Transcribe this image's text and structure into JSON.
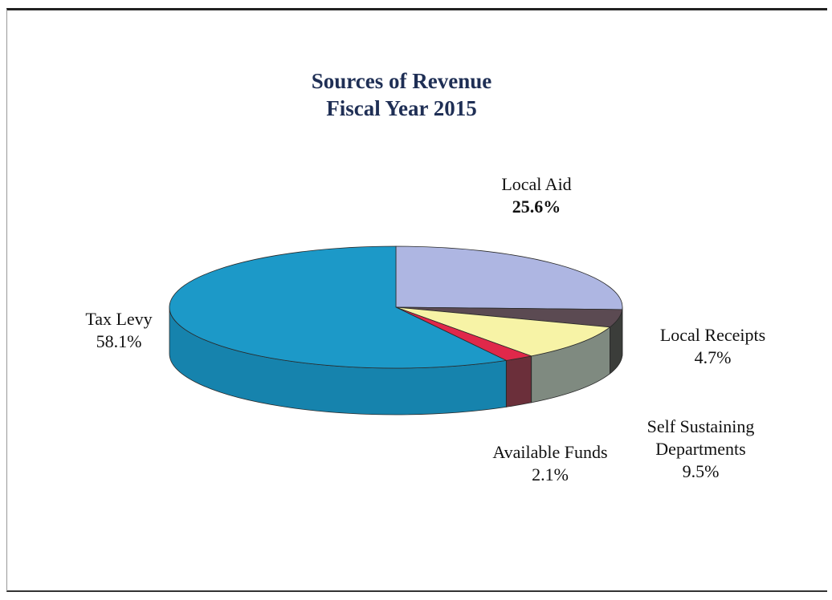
{
  "chart_data": {
    "type": "pie",
    "title": "Sources of Revenue",
    "subtitle": "Fiscal Year 2015",
    "slices": [
      {
        "label": "Local Aid",
        "value": 25.6,
        "display": "25.6%",
        "color": "#aeb6e2"
      },
      {
        "label": "Local Receipts",
        "value": 4.7,
        "display": "4.7%",
        "color": "#5b4a52"
      },
      {
        "label": "Self Sustaining Departments",
        "value": 9.5,
        "display": "9.5%",
        "color": "#f7f3a6"
      },
      {
        "label": "Available Funds",
        "value": 2.1,
        "display": "2.1%",
        "color": "#e0284a"
      },
      {
        "label": "Tax Levy",
        "value": 58.1,
        "display": "58.1%",
        "color": "#1c99c8"
      }
    ],
    "side_colors": {
      "Local Aid": "#5a4d55",
      "Local Receipts": "#3b3d3a",
      "Self Sustaining Departments": "#7f8a80",
      "Available Funds": "#6b2f3a",
      "Tax Levy": "#1683ad"
    }
  },
  "labels": {
    "local_aid_name": "Local Aid",
    "local_aid_value": "25.6%",
    "local_receipts_name": "Local Receipts",
    "local_receipts_value": "4.7%",
    "ssd_name_line1": "Self Sustaining",
    "ssd_name_line2": "Departments",
    "ssd_value": "9.5%",
    "available_name": "Available Funds",
    "available_value": "2.1%",
    "tax_name": "Tax Levy",
    "tax_value": "58.1%"
  }
}
